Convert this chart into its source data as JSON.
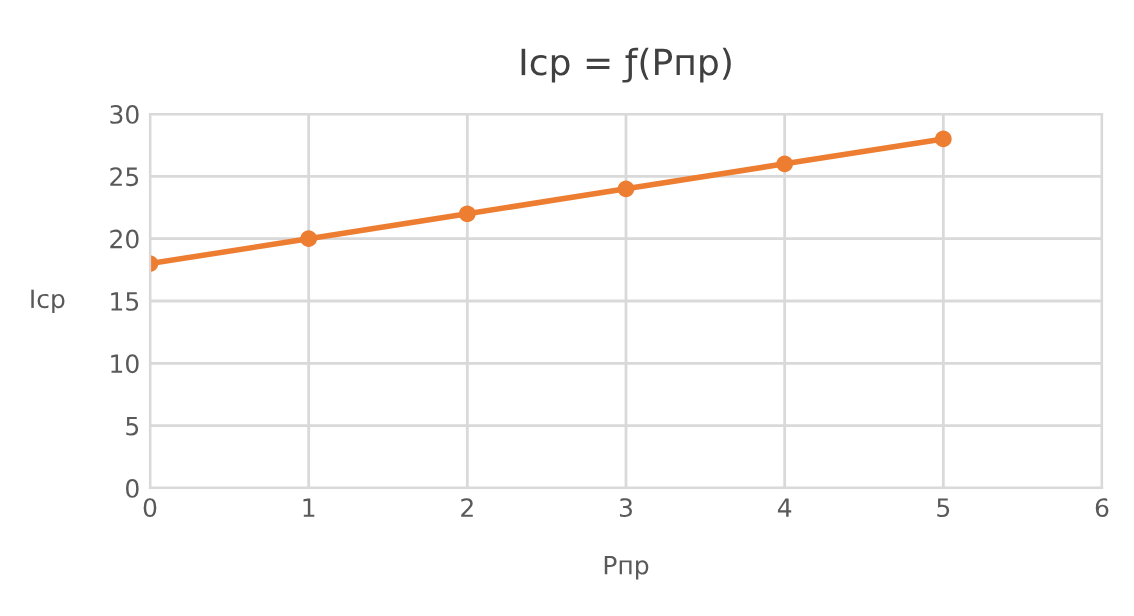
{
  "chart_data": {
    "type": "line",
    "title": "Iср = ƒ(Pпр)",
    "xlabel": "Pпр",
    "ylabel": "Iср",
    "x": [
      0,
      1,
      2,
      3,
      4,
      5
    ],
    "series": [
      {
        "color": "#ed7d31",
        "values": [
          18,
          20,
          22,
          24,
          26,
          28
        ]
      }
    ],
    "xlim": [
      0,
      6
    ],
    "xticks": [
      0,
      1,
      2,
      3,
      4,
      5,
      6
    ],
    "ylim": [
      0,
      30
    ],
    "yticks": [
      0,
      5,
      10,
      15,
      20,
      25,
      30
    ],
    "grid": true,
    "marker": "circle",
    "line_style": "solid"
  }
}
